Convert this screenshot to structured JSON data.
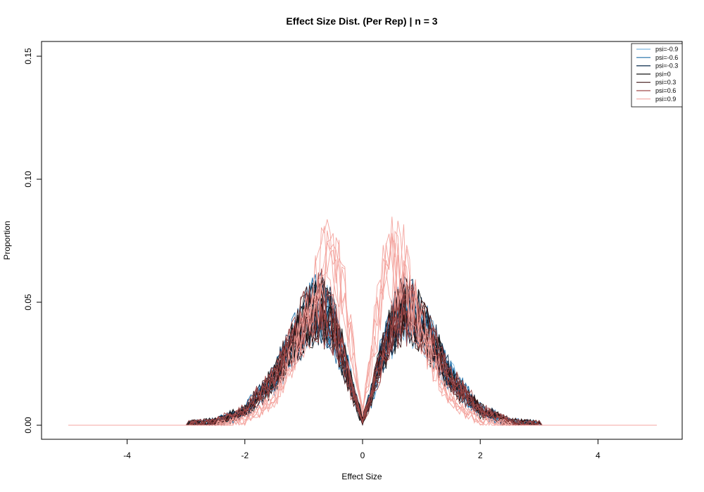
{
  "chart_data": {
    "type": "line",
    "title": "Effect Size Dist. (Per Rep) | n = 3",
    "xlabel": "Effect Size",
    "ylabel": "Proportion",
    "xlim": [
      -5,
      5
    ],
    "ylim": [
      0,
      0.15
    ],
    "xticks": [
      -4,
      -2,
      0,
      2,
      4
    ],
    "xtick_labels": [
      "-4",
      "-2",
      "0",
      "2",
      "4"
    ],
    "yticks": [
      0,
      0.05,
      0.1,
      0.15
    ],
    "ytick_labels": [
      "0.00",
      "0.05",
      "0.10",
      "0.15"
    ],
    "grid": false,
    "legend_position": "top-right",
    "reps_per_series": 6,
    "series": [
      {
        "name": "psi=-0.9",
        "color": "#7fb8e0",
        "x": [
          -5,
          -3,
          -2.5,
          -2,
          -1.5,
          -1.2,
          -0.9,
          -0.7,
          -0.5,
          -0.3,
          -0.15,
          0,
          0.15,
          0.3,
          0.5,
          0.7,
          0.9,
          1.2,
          1.5,
          2,
          2.5,
          3,
          5
        ],
        "y": [
          0,
          0,
          0.001,
          0.006,
          0.019,
          0.033,
          0.045,
          0.048,
          0.04,
          0.026,
          0.012,
          0.002,
          0.012,
          0.026,
          0.04,
          0.048,
          0.045,
          0.033,
          0.019,
          0.006,
          0.001,
          0,
          0
        ]
      },
      {
        "name": "psi=-0.6",
        "color": "#1f6fa8",
        "x": [
          -5,
          -3,
          -2.5,
          -2,
          -1.5,
          -1.2,
          -0.9,
          -0.7,
          -0.5,
          -0.3,
          -0.15,
          0,
          0.15,
          0.3,
          0.5,
          0.7,
          0.9,
          1.2,
          1.5,
          2,
          2.5,
          3,
          5
        ],
        "y": [
          0,
          0,
          0.001,
          0.006,
          0.019,
          0.033,
          0.045,
          0.048,
          0.04,
          0.026,
          0.012,
          0.002,
          0.012,
          0.026,
          0.04,
          0.048,
          0.045,
          0.033,
          0.019,
          0.006,
          0.001,
          0,
          0
        ]
      },
      {
        "name": "psi=-0.3",
        "color": "#0f2f4f",
        "x": [
          -5,
          -3,
          -2.5,
          -2,
          -1.5,
          -1.2,
          -0.9,
          -0.7,
          -0.5,
          -0.3,
          -0.15,
          0,
          0.15,
          0.3,
          0.5,
          0.7,
          0.9,
          1.2,
          1.5,
          2,
          2.5,
          3,
          5
        ],
        "y": [
          0,
          0,
          0.001,
          0.006,
          0.019,
          0.033,
          0.045,
          0.048,
          0.04,
          0.026,
          0.012,
          0.002,
          0.012,
          0.026,
          0.04,
          0.048,
          0.045,
          0.033,
          0.019,
          0.006,
          0.001,
          0,
          0
        ]
      },
      {
        "name": "psi=0",
        "color": "#1a1a1a",
        "x": [
          -5,
          -3,
          -2.5,
          -2,
          -1.5,
          -1.2,
          -0.9,
          -0.7,
          -0.5,
          -0.3,
          -0.15,
          0,
          0.15,
          0.3,
          0.5,
          0.7,
          0.9,
          1.2,
          1.5,
          2,
          2.5,
          3,
          5
        ],
        "y": [
          0,
          0,
          0.001,
          0.006,
          0.019,
          0.033,
          0.045,
          0.048,
          0.04,
          0.026,
          0.012,
          0.002,
          0.012,
          0.026,
          0.04,
          0.048,
          0.045,
          0.033,
          0.019,
          0.006,
          0.001,
          0,
          0
        ]
      },
      {
        "name": "psi=0.3",
        "color": "#3f1616",
        "x": [
          -5,
          -3,
          -2.5,
          -2,
          -1.5,
          -1.2,
          -0.9,
          -0.7,
          -0.5,
          -0.3,
          -0.15,
          0,
          0.15,
          0.3,
          0.5,
          0.7,
          0.9,
          1.2,
          1.5,
          2,
          2.5,
          3,
          5
        ],
        "y": [
          0,
          0,
          0.001,
          0.006,
          0.019,
          0.033,
          0.045,
          0.048,
          0.04,
          0.026,
          0.012,
          0.002,
          0.012,
          0.026,
          0.04,
          0.048,
          0.045,
          0.033,
          0.019,
          0.006,
          0.001,
          0,
          0
        ]
      },
      {
        "name": "psi=0.6",
        "color": "#a04a4a",
        "x": [
          -5,
          -3,
          -2.5,
          -2,
          -1.5,
          -1.2,
          -0.9,
          -0.7,
          -0.5,
          -0.3,
          -0.15,
          0,
          0.15,
          0.3,
          0.5,
          0.7,
          0.9,
          1.2,
          1.5,
          2,
          2.5,
          3,
          5
        ],
        "y": [
          0,
          0,
          0.001,
          0.006,
          0.019,
          0.033,
          0.045,
          0.048,
          0.04,
          0.026,
          0.012,
          0.002,
          0.012,
          0.026,
          0.04,
          0.048,
          0.045,
          0.033,
          0.019,
          0.006,
          0.001,
          0,
          0
        ]
      },
      {
        "name": "psi=0.9",
        "color": "#f4a6a0",
        "x": [
          -5,
          -2.5,
          -2,
          -1.5,
          -1.2,
          -0.9,
          -0.7,
          -0.5,
          -0.3,
          -0.15,
          0,
          0.15,
          0.3,
          0.5,
          0.7,
          0.9,
          1.2,
          1.5,
          2,
          2.5,
          5
        ],
        "y": [
          0,
          0,
          0.002,
          0.01,
          0.026,
          0.046,
          0.062,
          0.066,
          0.052,
          0.028,
          0.005,
          0.028,
          0.052,
          0.066,
          0.062,
          0.046,
          0.026,
          0.01,
          0.002,
          0,
          0
        ]
      }
    ]
  }
}
